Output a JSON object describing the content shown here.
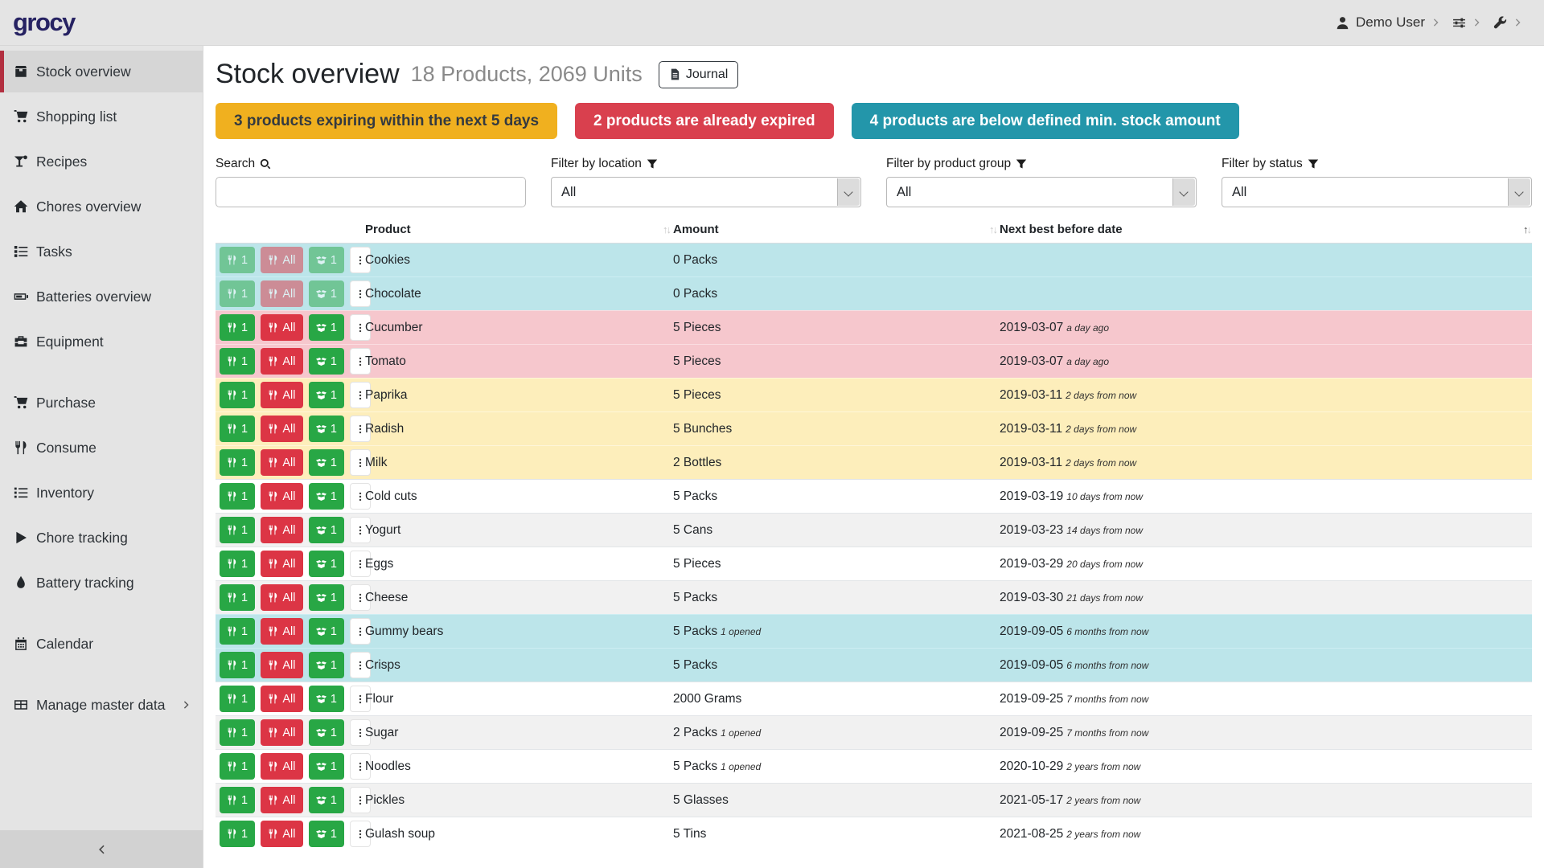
{
  "topbar": {
    "logo": "grocy",
    "menus": [
      {
        "id": "user-menu",
        "icon": "person",
        "label": "Demo User"
      },
      {
        "id": "settings-menu",
        "icon": "sliders",
        "label": ""
      },
      {
        "id": "admin-menu",
        "icon": "wrench",
        "label": ""
      }
    ],
    "menu_chevron_icon": "chevron-right"
  },
  "sidebar": {
    "items": [
      {
        "id": "stock-overview",
        "icon": "box",
        "label": "Stock overview",
        "active": true,
        "gap": false,
        "submenu": false
      },
      {
        "id": "shopping-list",
        "icon": "cart",
        "label": "Shopping list",
        "active": false,
        "gap": false,
        "submenu": false
      },
      {
        "id": "recipes",
        "icon": "cocktail",
        "label": "Recipes",
        "active": false,
        "gap": false,
        "submenu": false
      },
      {
        "id": "chores-overview",
        "icon": "home",
        "label": "Chores overview",
        "active": false,
        "gap": false,
        "submenu": false
      },
      {
        "id": "tasks",
        "icon": "tasks",
        "label": "Tasks",
        "active": false,
        "gap": false,
        "submenu": false
      },
      {
        "id": "batteries-overview",
        "icon": "battery",
        "label": "Batteries overview",
        "active": false,
        "gap": false,
        "submenu": false
      },
      {
        "id": "equipment",
        "icon": "toolbox",
        "label": "Equipment",
        "active": false,
        "gap": false,
        "submenu": false
      },
      {
        "id": "purchase",
        "icon": "cart",
        "label": "Purchase",
        "active": false,
        "gap": true,
        "submenu": false
      },
      {
        "id": "consume",
        "icon": "utensils",
        "label": "Consume",
        "active": false,
        "gap": false,
        "submenu": false
      },
      {
        "id": "inventory",
        "icon": "list",
        "label": "Inventory",
        "active": false,
        "gap": false,
        "submenu": false
      },
      {
        "id": "chore-tracking",
        "icon": "play",
        "label": "Chore tracking",
        "active": false,
        "gap": false,
        "submenu": false
      },
      {
        "id": "battery-tracking",
        "icon": "droplet",
        "label": "Battery tracking",
        "active": false,
        "gap": false,
        "submenu": false
      },
      {
        "id": "calendar",
        "icon": "calendar",
        "label": "Calendar",
        "active": false,
        "gap": true,
        "submenu": false
      },
      {
        "id": "manage-master-data",
        "icon": "table-grid",
        "label": "Manage master data",
        "active": false,
        "gap": true,
        "submenu": true
      }
    ],
    "submenu_chevron_icon": "chevron-right",
    "collapse_icon": "chevron-left"
  },
  "header": {
    "title": "Stock overview",
    "subtitle": "18 Products, 2069 Units",
    "journal_label": "Journal",
    "journal_icon": "file"
  },
  "alerts": [
    {
      "type": "warning",
      "color": "#f0b01f",
      "text": "3 products expiring within the next 5 days"
    },
    {
      "type": "danger",
      "color": "#d9404e",
      "text": "2 products are already expired"
    },
    {
      "type": "info",
      "color": "#2396aa",
      "text": "4 products are below defined min. stock amount"
    }
  ],
  "filters": {
    "search": {
      "label": "Search",
      "icon": "search",
      "value": ""
    },
    "selects": [
      {
        "id": "location-filter",
        "label": "Filter by location",
        "icon": "filter",
        "value": "All"
      },
      {
        "id": "product-group-filter",
        "label": "Filter by product group",
        "icon": "filter",
        "value": "All"
      },
      {
        "id": "status-filter",
        "label": "Filter by status",
        "icon": "filter",
        "value": "All"
      }
    ]
  },
  "icons": {
    "sort_up": "↑",
    "sort_down": "↓"
  },
  "table": {
    "headers": [
      {
        "id": "actions",
        "label": "",
        "sortable": false,
        "sorted": "none"
      },
      {
        "id": "product",
        "label": "Product",
        "sortable": true,
        "sorted": "none"
      },
      {
        "id": "amount",
        "label": "Amount",
        "sortable": true,
        "sorted": "none"
      },
      {
        "id": "date",
        "label": "Next best before date",
        "sortable": true,
        "sorted": "asc"
      }
    ],
    "row_buttons": [
      {
        "id": "consume-one",
        "style": "green",
        "icon": "utensils",
        "label": "1"
      },
      {
        "id": "consume-all",
        "style": "red",
        "icon": "utensils",
        "label": "All"
      },
      {
        "id": "open-one",
        "style": "green",
        "icon": "box-open",
        "label": "1"
      },
      {
        "id": "row-menu",
        "style": "menu",
        "icon": "ellipsis-v",
        "label": ""
      }
    ],
    "rows": [
      {
        "product": "Cookies",
        "amount": "0 Packs",
        "note": "",
        "date": "",
        "relative": "",
        "status": "info",
        "disabled": true
      },
      {
        "product": "Chocolate",
        "amount": "0 Packs",
        "note": "",
        "date": "",
        "relative": "",
        "status": "info",
        "disabled": true
      },
      {
        "product": "Cucumber",
        "amount": "5 Pieces",
        "note": "",
        "date": "2019-03-07",
        "relative": "a day ago",
        "status": "danger",
        "disabled": false
      },
      {
        "product": "Tomato",
        "amount": "5 Pieces",
        "note": "",
        "date": "2019-03-07",
        "relative": "a day ago",
        "status": "danger",
        "disabled": false
      },
      {
        "product": "Paprika",
        "amount": "5 Pieces",
        "note": "",
        "date": "2019-03-11",
        "relative": "2 days from now",
        "status": "warning",
        "disabled": false
      },
      {
        "product": "Radish",
        "amount": "5 Bunches",
        "note": "",
        "date": "2019-03-11",
        "relative": "2 days from now",
        "status": "warning",
        "disabled": false
      },
      {
        "product": "Milk",
        "amount": "2 Bottles",
        "note": "",
        "date": "2019-03-11",
        "relative": "2 days from now",
        "status": "warning",
        "disabled": false
      },
      {
        "product": "Cold cuts",
        "amount": "5 Packs",
        "note": "",
        "date": "2019-03-19",
        "relative": "10 days from now",
        "status": "",
        "disabled": false
      },
      {
        "product": "Yogurt",
        "amount": "5 Cans",
        "note": "",
        "date": "2019-03-23",
        "relative": "14 days from now",
        "status": "",
        "disabled": false
      },
      {
        "product": "Eggs",
        "amount": "5 Pieces",
        "note": "",
        "date": "2019-03-29",
        "relative": "20 days from now",
        "status": "",
        "disabled": false
      },
      {
        "product": "Cheese",
        "amount": "5 Packs",
        "note": "",
        "date": "2019-03-30",
        "relative": "21 days from now",
        "status": "",
        "disabled": false
      },
      {
        "product": "Gummy bears",
        "amount": "5 Packs",
        "note": "1 opened",
        "date": "2019-09-05",
        "relative": "6 months from now",
        "status": "info",
        "disabled": false
      },
      {
        "product": "Crisps",
        "amount": "5 Packs",
        "note": "",
        "date": "2019-09-05",
        "relative": "6 months from now",
        "status": "info",
        "disabled": false
      },
      {
        "product": "Flour",
        "amount": "2000 Grams",
        "note": "",
        "date": "2019-09-25",
        "relative": "7 months from now",
        "status": "",
        "disabled": false
      },
      {
        "product": "Sugar",
        "amount": "2 Packs",
        "note": "1 opened",
        "date": "2019-09-25",
        "relative": "7 months from now",
        "status": "",
        "disabled": false
      },
      {
        "product": "Noodles",
        "amount": "5 Packs",
        "note": "1 opened",
        "date": "2020-10-29",
        "relative": "2 years from now",
        "status": "",
        "disabled": false
      },
      {
        "product": "Pickles",
        "amount": "5 Glasses",
        "note": "",
        "date": "2021-05-17",
        "relative": "2 years from now",
        "status": "",
        "disabled": false
      },
      {
        "product": "Gulash soup",
        "amount": "5 Tins",
        "note": "",
        "date": "2021-08-25",
        "relative": "2 years from now",
        "status": "",
        "disabled": false
      }
    ]
  }
}
